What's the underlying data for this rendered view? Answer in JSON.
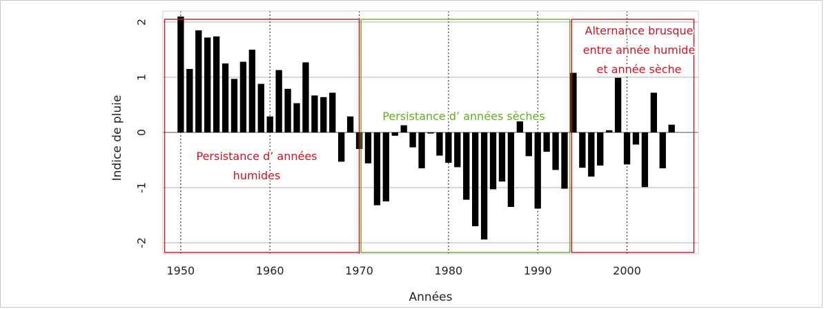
{
  "chart_data": {
    "type": "bar",
    "xlabel": "Années",
    "ylabel": "Indice de pluie",
    "xlim": [
      1948,
      2008
    ],
    "ylim": [
      -2.2,
      2.2
    ],
    "x_ticks": [
      1950,
      1960,
      1970,
      1980,
      1990,
      2000
    ],
    "y_ticks": [
      2,
      1,
      0,
      -1,
      -2
    ],
    "grid": true,
    "x": [
      1950,
      1951,
      1952,
      1953,
      1954,
      1955,
      1956,
      1957,
      1958,
      1959,
      1960,
      1961,
      1962,
      1963,
      1964,
      1965,
      1966,
      1967,
      1968,
      1969,
      1970,
      1971,
      1972,
      1973,
      1974,
      1975,
      1976,
      1977,
      1978,
      1979,
      1980,
      1981,
      1982,
      1983,
      1984,
      1985,
      1986,
      1987,
      1988,
      1989,
      1990,
      1991,
      1992,
      1993,
      1994,
      1995,
      1996,
      1997,
      1998,
      1999,
      2000,
      2001,
      2002,
      2003,
      2004,
      2005
    ],
    "values": [
      2.1,
      1.15,
      1.85,
      1.72,
      1.74,
      1.25,
      0.97,
      1.28,
      1.5,
      0.88,
      0.29,
      1.13,
      0.79,
      0.53,
      1.27,
      0.67,
      0.64,
      0.72,
      -0.53,
      0.29,
      -0.3,
      -0.56,
      -1.32,
      -1.25,
      -0.06,
      0.13,
      -0.27,
      -0.65,
      -0.02,
      -0.42,
      -0.55,
      -0.63,
      -1.22,
      -1.7,
      -1.94,
      -1.03,
      -0.89,
      -1.35,
      0.2,
      -0.43,
      -1.38,
      -0.35,
      -0.68,
      -1.02,
      1.08,
      -0.64,
      -0.8,
      -0.6,
      0.04,
      0.99,
      -0.58,
      -0.22,
      -0.99,
      0.72,
      -0.65,
      0.14
    ],
    "regions": [
      {
        "label": "Persistance d’ années humides",
        "lines": [
          "Persistance d’ années",
          "humides"
        ],
        "start": 1948.2,
        "end": 1970.0,
        "color": "#cc1122"
      },
      {
        "label": "Persistance d’ années sèches",
        "lines": [
          "Persistance d’ années sèches"
        ],
        "start": 1970.2,
        "end": 1993.6,
        "color": "#66aa22"
      },
      {
        "label": "Alternance brusque entre année humide et année sèche",
        "lines": [
          "Alternance brusque",
          "entre année humide",
          "et année sèche"
        ],
        "start": 1993.8,
        "end": 2007.5,
        "color": "#cc1122"
      }
    ],
    "colors": {
      "bar": "#000000",
      "grid": "#bcbcbc",
      "zero_line": "#888888",
      "red": "#cc1122",
      "green": "#66aa22"
    }
  }
}
